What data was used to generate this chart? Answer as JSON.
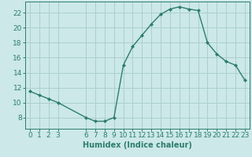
{
  "x": [
    0,
    1,
    2,
    3,
    6,
    7,
    8,
    9,
    10,
    11,
    12,
    13,
    14,
    15,
    16,
    17,
    18,
    19,
    20,
    21,
    22,
    23
  ],
  "y": [
    11.5,
    11.0,
    10.5,
    10.0,
    8.0,
    7.5,
    7.5,
    8.0,
    15.0,
    17.5,
    19.0,
    20.5,
    21.8,
    22.5,
    22.8,
    22.5,
    22.3,
    18.0,
    16.5,
    15.5,
    15.0,
    13.0
  ],
  "line_color": "#2d7d6e",
  "marker": "D",
  "marker_size": 2,
  "bg_color": "#cce8e8",
  "grid_color": "#aacfcf",
  "xlabel": "Humidex (Indice chaleur)",
  "xlim": [
    -0.5,
    23.5
  ],
  "ylim": [
    6.5,
    23.5
  ],
  "xticks": [
    0,
    1,
    2,
    3,
    6,
    7,
    8,
    9,
    10,
    11,
    12,
    13,
    14,
    15,
    16,
    17,
    18,
    19,
    20,
    21,
    22,
    23
  ],
  "yticks": [
    8,
    10,
    12,
    14,
    16,
    18,
    20,
    22
  ],
  "label_fontsize": 7,
  "tick_fontsize": 6.5
}
